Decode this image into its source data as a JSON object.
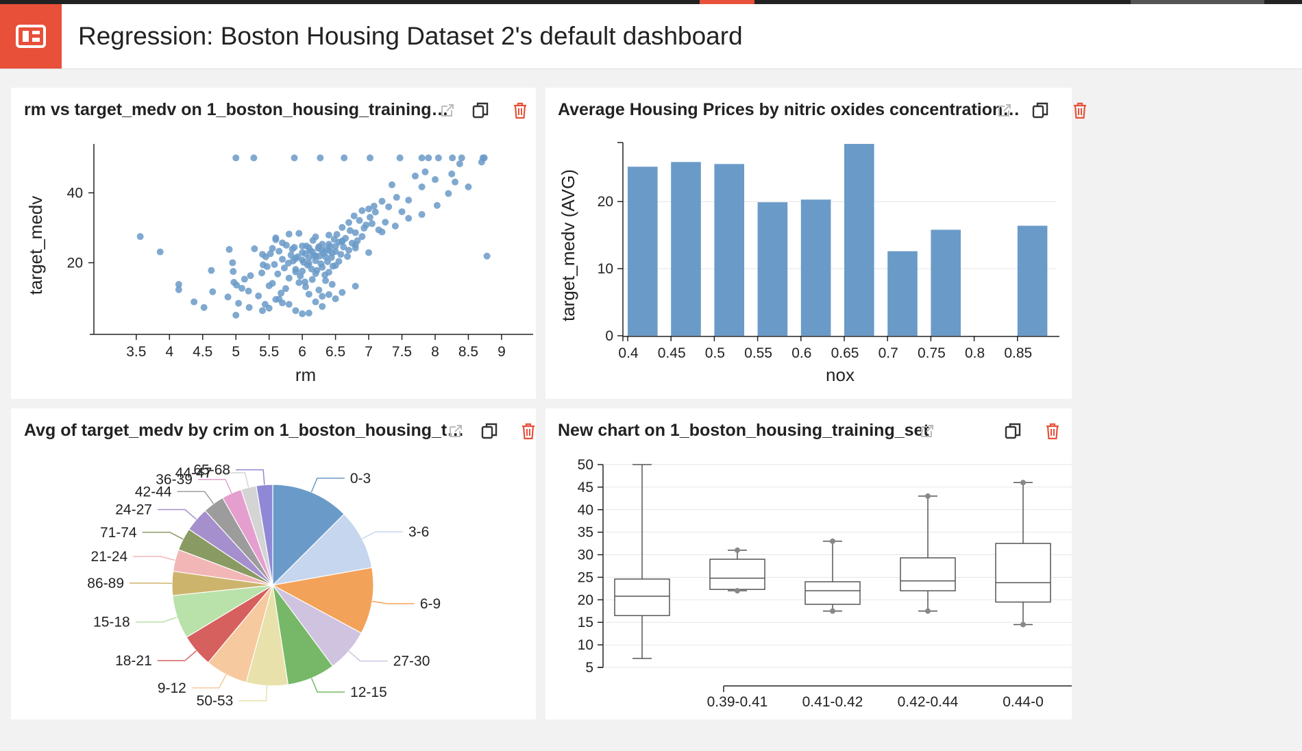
{
  "page": {
    "title": "Regression: Boston Housing Dataset 2's default dashboard",
    "accent_color": "#e8503a"
  },
  "tile_icons": [
    "external-link-icon",
    "copy-icon",
    "trash-icon"
  ],
  "tiles": [
    {
      "title": "rm vs target_medv on 1_boston_housing_training…",
      "chart_data": {
        "type": "scatter",
        "xlabel": "rm",
        "ylabel": "target_medv",
        "xlim": [
          2.8,
          9.3
        ],
        "ylim": [
          -0.5,
          54
        ],
        "xticks": [
          "3.5",
          "4",
          "4.5",
          "5",
          "5.5",
          "6",
          "6.5",
          "7",
          "7.5",
          "8",
          "8.5",
          "9"
        ],
        "yticks": [
          "20",
          "40"
        ],
        "color": "#6a9ac8",
        "x": [
          3.56,
          3.86,
          4.14,
          4.14,
          4.37,
          4.52,
          4.63,
          4.65,
          4.88,
          4.97,
          4.95,
          4.9,
          4.96,
          5.0,
          5.01,
          5.04,
          5.09,
          5.13,
          5.19,
          5.22,
          5.28,
          5.34,
          5.39,
          5.41,
          5.44,
          5.45,
          5.47,
          5.5,
          5.52,
          5.55,
          5.58,
          5.6,
          5.63,
          5.65,
          5.68,
          5.7,
          5.73,
          5.76,
          5.79,
          5.8,
          5.83,
          5.86,
          5.88,
          5.9,
          5.93,
          5.95,
          5.97,
          6.0,
          6.02,
          6.04,
          6.06,
          6.08,
          6.1,
          6.12,
          6.14,
          6.16,
          6.18,
          6.2,
          6.22,
          6.24,
          6.26,
          6.28,
          6.3,
          6.32,
          6.34,
          6.36,
          6.38,
          6.4,
          6.42,
          6.44,
          6.46,
          6.48,
          6.5,
          6.52,
          6.55,
          6.58,
          6.6,
          6.62,
          6.65,
          6.68,
          6.7,
          6.72,
          6.75,
          6.78,
          6.8,
          6.83,
          6.86,
          6.9,
          6.93,
          6.96,
          7.0,
          7.02,
          7.05,
          7.08,
          7.1,
          7.15,
          7.2,
          7.25,
          7.3,
          7.35,
          7.42,
          7.5,
          7.6,
          7.7,
          7.8,
          7.85,
          7.9,
          8.0,
          8.03,
          8.05,
          8.25,
          8.3,
          8.37,
          8.4,
          8.5,
          8.72,
          8.78,
          8.7,
          5.4,
          5.55,
          5.7,
          5.85,
          5.9,
          6.0,
          6.05,
          6.1,
          6.15,
          6.2,
          6.25,
          6.3,
          6.35,
          6.4,
          6.45,
          6.5,
          6.55,
          6.6,
          6.7,
          6.8,
          6.9,
          5.9,
          6.0,
          6.1,
          6.2,
          6.3,
          6.4,
          6.5,
          5.75,
          5.95,
          6.05,
          6.15,
          6.25,
          6.35,
          6.45,
          5.65,
          5.6,
          5.8,
          6.0,
          6.2,
          6.4,
          6.6,
          6.8,
          7.0,
          7.2,
          7.4,
          7.6,
          7.8,
          8.2,
          6.1,
          6.3,
          6.5,
          5.5,
          5.7,
          5.9,
          6.1,
          6.3,
          5.0,
          5.2,
          5.4,
          5.6,
          5.8,
          6.0,
          6.2,
          6.4,
          6.6,
          6.8,
          5.27,
          5.88,
          6.27,
          6.63,
          7.02,
          7.47,
          7.8,
          8.26,
          8.74
        ],
        "y": [
          27.5,
          23.1,
          13.8,
          12.3,
          8.8,
          7.2,
          17.8,
          11.7,
          10.2,
          14.4,
          20.0,
          23.8,
          17.5,
          50.0,
          13.6,
          8.4,
          12.7,
          15.3,
          11.9,
          16.3,
          24.0,
          10.5,
          17.1,
          19.4,
          8.1,
          21.7,
          18.9,
          13.4,
          22.6,
          14.1,
          19.5,
          27.1,
          16.8,
          23.3,
          11.3,
          21.0,
          18.5,
          25.0,
          19.9,
          15.6,
          22.2,
          20.5,
          24.4,
          17.4,
          21.7,
          28.4,
          16.2,
          22.9,
          20.1,
          14.5,
          24.8,
          19.3,
          21.4,
          23.5,
          18.2,
          26.4,
          22.0,
          20.6,
          17.8,
          24.1,
          21.9,
          19.7,
          25.3,
          22.7,
          16.5,
          23.8,
          20.3,
          27.9,
          24.6,
          21.5,
          19.0,
          26.7,
          23.2,
          28.1,
          25.9,
          22.4,
          30.1,
          24.5,
          27.0,
          21.8,
          31.5,
          29.2,
          25.6,
          33.4,
          28.6,
          26.3,
          32.1,
          34.9,
          29.9,
          30.8,
          35.4,
          33.0,
          31.2,
          36.2,
          34.5,
          29.4,
          37.6,
          31.6,
          36.0,
          42.3,
          38.7,
          34.6,
          37.9,
          44.8,
          41.7,
          46.0,
          50.0,
          43.8,
          36.4,
          50.0,
          45.4,
          43.1,
          48.3,
          50.0,
          41.7,
          50.0,
          21.9,
          48.8,
          22.4,
          24.1,
          25.7,
          23.9,
          21.2,
          20.8,
          22.6,
          24.3,
          23.1,
          22.0,
          24.6,
          23.4,
          21.7,
          25.3,
          22.8,
          24.7,
          20.4,
          26.2,
          23.6,
          25.1,
          27.5,
          18.1,
          17.6,
          19.8,
          16.9,
          18.7,
          17.3,
          19.2,
          12.6,
          14.3,
          13.1,
          15.2,
          12.2,
          14.9,
          13.8,
          9.6,
          26.6,
          28.2,
          24.8,
          27.4,
          23.5,
          26.1,
          24.2,
          22.9,
          28.8,
          30.5,
          32.7,
          33.8,
          39.8,
          11.0,
          10.4,
          9.7,
          7.0,
          8.5,
          6.3,
          5.6,
          7.5,
          5.0,
          7.2,
          6.3,
          9.5,
          8.1,
          5.4,
          8.8,
          10.9,
          11.5,
          13.3,
          50.0,
          50.0,
          50.0,
          50.0,
          50.0,
          50.0,
          50.0,
          50.0,
          50.0
        ]
      }
    },
    {
      "title": "Average Housing Prices by nitric oxides concentration…",
      "chart_data": {
        "type": "bar",
        "xlabel": "nox",
        "ylabel": "target_medv (AVG)",
        "categories": [
          "0.4",
          "0.45",
          "0.5",
          "0.55",
          "0.6",
          "0.65",
          "0.7",
          "0.75",
          "0.8",
          "0.85"
        ],
        "values": [
          25.2,
          25.9,
          25.6,
          19.9,
          20.3,
          28.6,
          12.6,
          15.8,
          null,
          16.4
        ],
        "ylim": [
          0,
          28.6
        ],
        "yticks": [
          "0",
          "10",
          "20"
        ],
        "color": "#6a9ac8"
      }
    },
    {
      "title": "Avg of target_medv by crim on 1_boston_housing_t…",
      "chart_data": {
        "type": "pie",
        "categories": [
          "0-3",
          "3-6",
          "6-9",
          "27-30",
          "12-15",
          "50-53",
          "9-12",
          "18-21",
          "15-18",
          "86-89",
          "21-24",
          "71-74",
          "24-27",
          "42-44",
          "36-39",
          "44-47",
          "65-68"
        ],
        "values": [
          26.3,
          20.3,
          22.4,
          14.6,
          16.2,
          14.0,
          14.3,
          11.1,
          14.7,
          8.1,
          7.4,
          7.6,
          8.2,
          7.2,
          6.7,
          5.2,
          5.5
        ],
        "colors": [
          "#6a9ac8",
          "#c5d6ee",
          "#f3a259",
          "#cfc3df",
          "#76b867",
          "#e9e1ab",
          "#f7c99e",
          "#d6605e",
          "#b9e1aa",
          "#ccb46c",
          "#f2b6b7",
          "#8a9a63",
          "#a58fcc",
          "#9c9c9c",
          "#e49fce",
          "#d4d4d4",
          "#8f88d6"
        ]
      }
    },
    {
      "title": "New chart on 1_boston_housing_training_set",
      "chart_data": {
        "type": "box",
        "categories": [
          "",
          "0.39-0.41",
          "0.41-0.42",
          "0.42-0.44",
          "0.44-0"
        ],
        "ylim": [
          5,
          50
        ],
        "yticks": [
          "5",
          "10",
          "15",
          "20",
          "25",
          "30",
          "35",
          "40",
          "45",
          "50"
        ],
        "boxes": [
          {
            "min": 7.0,
            "q1": 16.5,
            "median": 20.8,
            "q3": 24.6,
            "max": 50.0,
            "outliers": []
          },
          {
            "min": 22.0,
            "q1": 22.3,
            "median": 24.8,
            "q3": 29.0,
            "max": 31.0,
            "outliers": [
              22.0,
              31.0
            ]
          },
          {
            "min": 17.5,
            "q1": 19.0,
            "median": 22.0,
            "q3": 24.0,
            "max": 33.0,
            "outliers": [
              17.5,
              33.0
            ]
          },
          {
            "min": 17.5,
            "q1": 22.0,
            "median": 24.2,
            "q3": 29.3,
            "max": 43.0,
            "outliers": [
              17.5,
              43.0
            ]
          },
          {
            "min": 14.5,
            "q1": 19.5,
            "median": 23.8,
            "q3": 32.5,
            "max": 46.0,
            "outliers": [
              14.5,
              46.0
            ]
          }
        ]
      }
    }
  ]
}
